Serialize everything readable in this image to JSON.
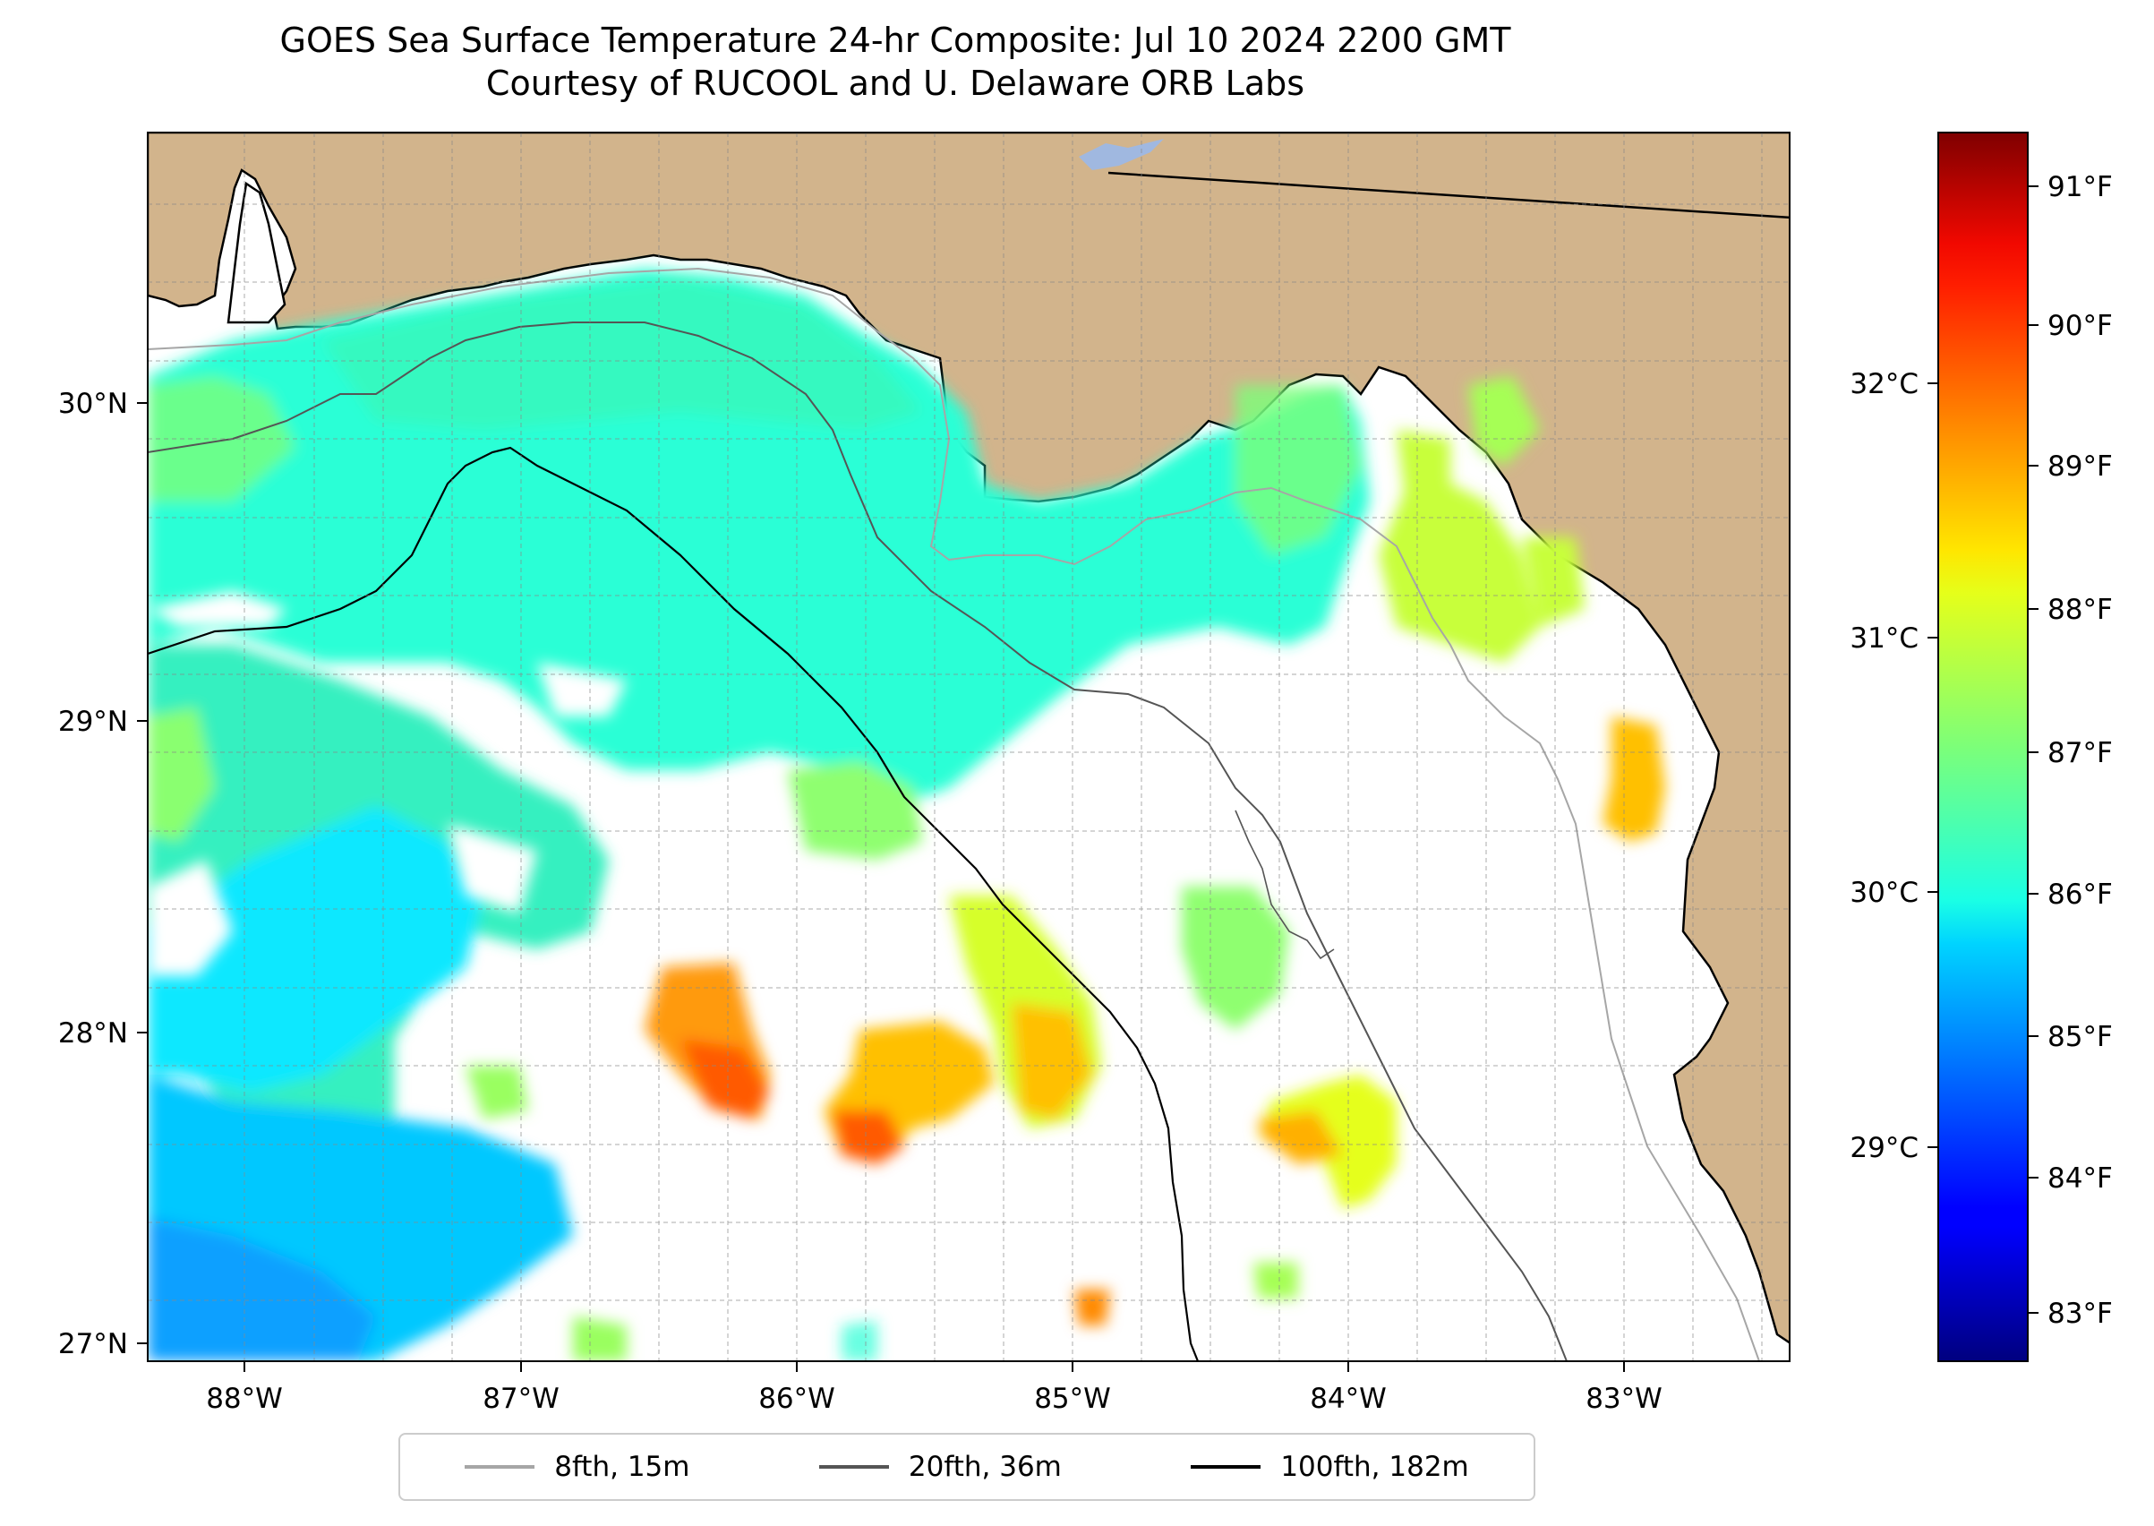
{
  "title": "GOES Sea Surface Temperature 24-hr Composite: Jul 10 2024 2200 GMT",
  "subtitle": "Courtesy of RUCOOL and U. Delaware ORB Labs",
  "map": {
    "extent": {
      "lon": [
        -88.35,
        -82.4
      ],
      "lat": [
        26.93,
        30.85
      ]
    },
    "lon_ticks": [
      "88°W",
      "87°W",
      "86°W",
      "85°W",
      "84°W",
      "83°W"
    ],
    "lat_ticks": [
      "27°N",
      "28°N",
      "29°N",
      "30°N"
    ],
    "land_color": "#d2b48c",
    "grid": true
  },
  "colorbar": {
    "colormap": "jet",
    "fahrenheit_ticks": [
      "83°F",
      "84°F",
      "85°F",
      "86°F",
      "87°F",
      "88°F",
      "89°F",
      "90°F",
      "91°F"
    ],
    "celsius_ticks": [
      "29°C",
      "30°C",
      "31°C",
      "32°C"
    ],
    "range_f": [
      82.7,
      91.3
    ]
  },
  "legend": [
    {
      "label": "8fth, 15m",
      "color": "#a6a6a6"
    },
    {
      "label": "20fth, 36m",
      "color": "#555555"
    },
    {
      "label": "100fth, 182m",
      "color": "#000000"
    }
  ]
}
